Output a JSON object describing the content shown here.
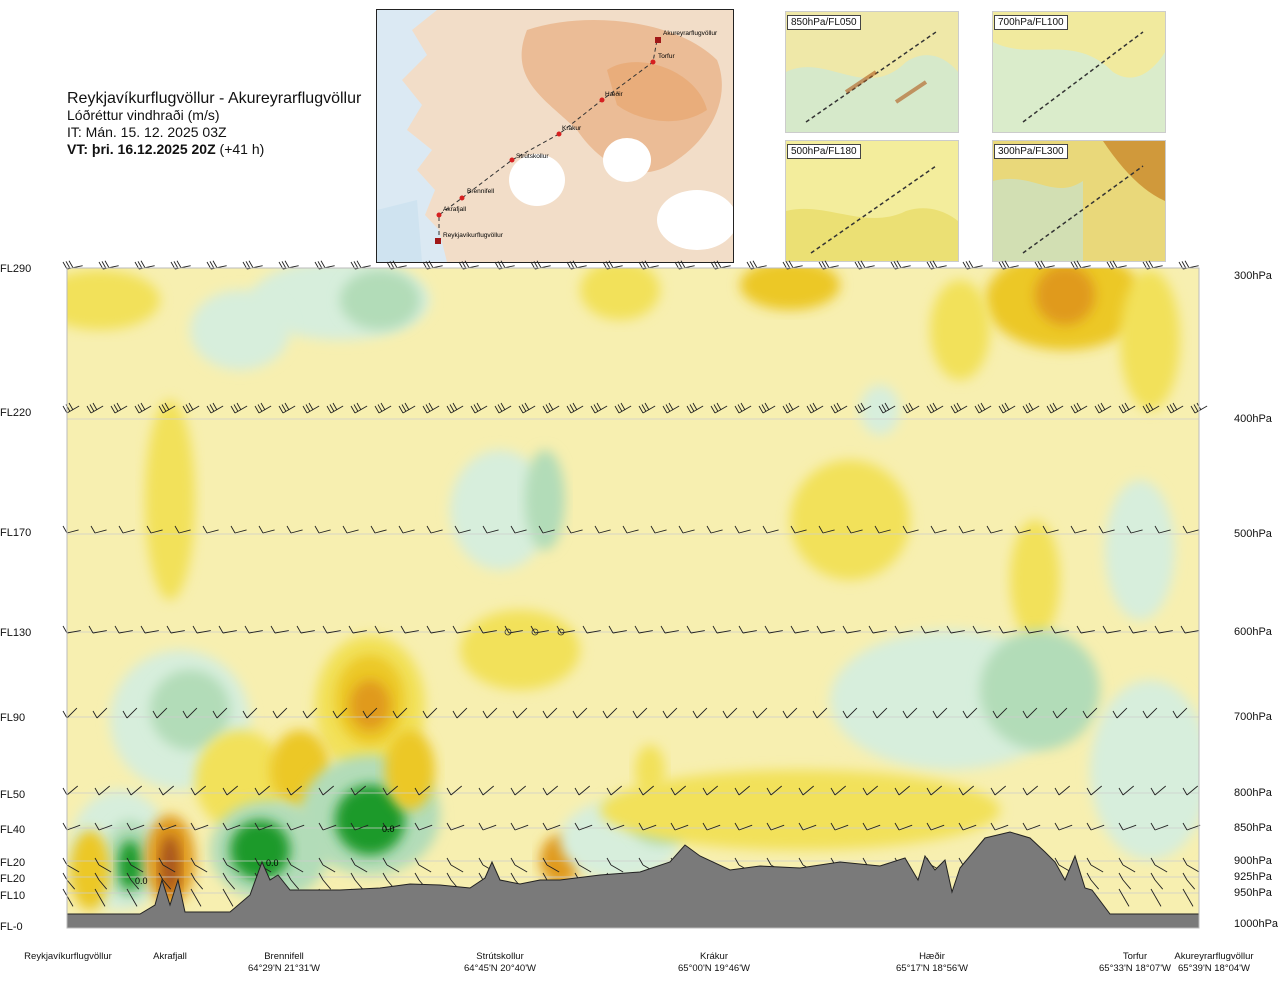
{
  "header": {
    "title": "Reykjavíkurflugvöllur - Akureyrarflugvöllur",
    "subtitle": "Lóðréttur vindhraði (m/s)",
    "it_line": "IT: Mán. 15. 12. 2025 03Z",
    "vt_label": "VT: þri. 16.12.2025 20Z",
    "vt_offset": "(+41 h)"
  },
  "map": {
    "labels": [
      "Akureyrarflugvöllur",
      "Torfur",
      "Hæðir",
      "Krákur",
      "Strútskollur",
      "Brennifell",
      "Akrafjall",
      "Reykjavíkurflugvöllur"
    ],
    "colors": {
      "sea": "#dbe9f3",
      "land_low": "#f2ddc8",
      "land_high": "#e8a66f",
      "ice": "#ffffff",
      "route": "#333333",
      "point": "#d62020"
    }
  },
  "thumbnails": [
    {
      "label": "850hPa/FL050"
    },
    {
      "label": "700hPa/FL100"
    },
    {
      "label": "500hPa/FL180"
    },
    {
      "label": "300hPa/FL300"
    }
  ],
  "chart_data": {
    "type": "heatmap",
    "title": "Lóðréttur vindhraði (m/s)",
    "left_axis_levels": [
      "FL290",
      "FL220",
      "FL170",
      "FL130",
      "FL90",
      "FL50",
      "FL40",
      "FL20",
      "FL20",
      "FL10",
      "FL-0"
    ],
    "right_axis_levels": [
      "300hPa",
      "400hPa",
      "500hPa",
      "600hPa",
      "700hPa",
      "800hPa",
      "850hPa",
      "900hPa",
      "925hPa",
      "950hPa",
      "1000hPa"
    ],
    "pressure_hpa": [
      300,
      400,
      500,
      600,
      700,
      800,
      850,
      900,
      925,
      950,
      1000
    ],
    "waypoints": [
      {
        "name": "Reykjavíkurflugvöllur",
        "coords": ""
      },
      {
        "name": "Akrafjall",
        "coords": ""
      },
      {
        "name": "Brennifell",
        "coords": "64°29'N 21°31'W"
      },
      {
        "name": "Strútskollur",
        "coords": "64°45'N 20°40'W"
      },
      {
        "name": "Krákur",
        "coords": "65°00'N 19°46'W"
      },
      {
        "name": "Hæðir",
        "coords": "65°17'N 18°56'W"
      },
      {
        "name": "Torfur",
        "coords": "65°33'N 18°07'W"
      },
      {
        "name": "Akureyrarflugvöllur",
        "coords": "65°39'N 18°04'W"
      }
    ],
    "annotations": [
      "0.0",
      "0.0",
      "0.0"
    ],
    "colors": {
      "background": "#f7efb0",
      "neutral_light": "#fdfbe8",
      "up_weak": "#f2e15a",
      "up_mid": "#ecc826",
      "up_strong": "#e09a1e",
      "up_max": "#a8541a",
      "down_weak": "#d7eedc",
      "down_mid": "#b2dcb8",
      "down_strong": "#6fbf73",
      "down_max": "#1f9a2a",
      "terrain": "#7a7a7a",
      "grid": "#cccccc"
    }
  },
  "legend_note": ""
}
